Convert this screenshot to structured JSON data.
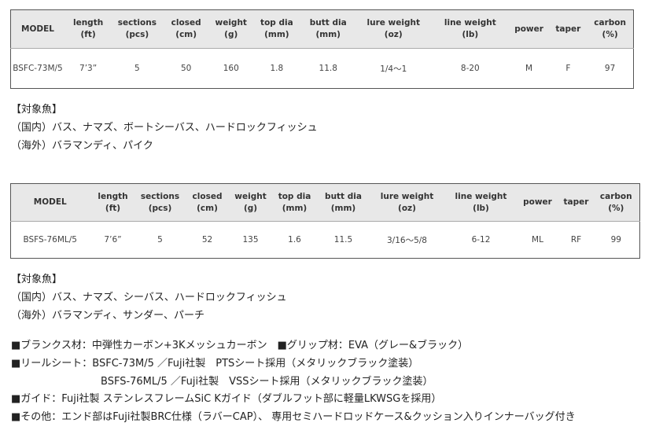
{
  "headers": [
    [
      "MODEL",
      ""
    ],
    [
      "length",
      "(ft)"
    ],
    [
      "sections",
      "(pcs)"
    ],
    [
      "closed",
      "(cm)"
    ],
    [
      "weight",
      "(g)"
    ],
    [
      "top dia",
      "(mm)"
    ],
    [
      "butt dia",
      "(mm)"
    ],
    [
      "lure weight",
      "(oz)"
    ],
    [
      "line weight",
      "(lb)"
    ],
    [
      "power",
      ""
    ],
    [
      "taper",
      ""
    ],
    [
      "carbon",
      "(%)"
    ]
  ],
  "table1": [
    "BSFC-73M/5",
    "7’3”",
    "5",
    "50",
    "160",
    "1.8",
    "11.8",
    "1/4～1",
    "8-20",
    "M",
    "F",
    "97"
  ],
  "fish1": {
    "title": "【対象魚】",
    "domestic": "（国内）バス、ナマズ、ボートシーバス、ハードロックフィッシュ",
    "overseas": "（海外）バラマンディ、パイク"
  },
  "table2": [
    "BSFS-76ML/5",
    "7’6”",
    "5",
    "52",
    "135",
    "1.6",
    "11.5",
    "3/16～5/8",
    "6-12",
    "ML",
    "RF",
    "99"
  ],
  "fish2": {
    "title": "【対象魚】",
    "domestic": "（国内）バス、ナマズ、シーバス、ハードロックフィッシュ",
    "overseas": "（海外）バラマンディ、サンダー、パーチ"
  },
  "specs": {
    "blank": "■ブランクス材：中弾性カーボン+3Kメッシュカーボン　■グリップ材：EVA（グレー&ブラック）",
    "reel1": "■リールシート：BSFC-73M/5 ／Fuji社製　PTSシート採用（メタリックブラック塗装）",
    "reel2": "BSFS-76ML/5 ／Fuji社製　VSSシート採用（メタリックブラック塗装）",
    "guide": "■ガイド：Fuji社製 ステンレスフレームSiC Kガイド（ダブルフット部に軽量LKWSGを採用）",
    "other": "■その他：エンド部はFuji社製BRC仕様（ラバーCAP）、 専用セミハードロッドケース&クッション入りインナーバッグ付き"
  }
}
